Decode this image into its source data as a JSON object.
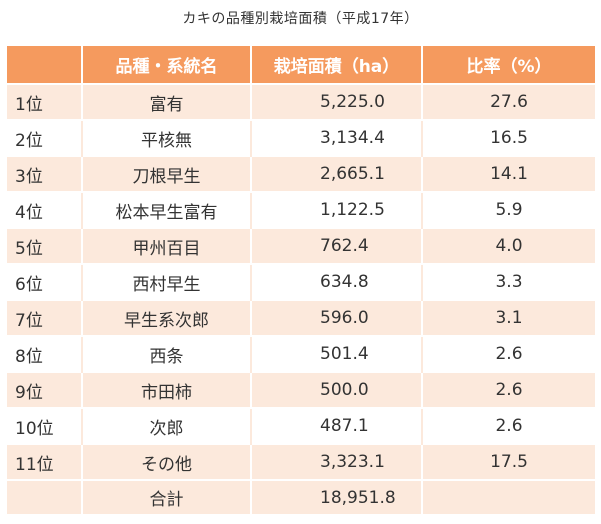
{
  "title": "カキの品種別栽培面積（平成17年）",
  "headers": {
    "rank": "",
    "name": "品種・系統名",
    "area": "栽培面積（ha）",
    "ratio": "比率（%）"
  },
  "rows": [
    {
      "rank": "1位",
      "name": "富有",
      "area": "5,225.0",
      "ratio": "27.6"
    },
    {
      "rank": "2位",
      "name": "平核無",
      "area": "3,134.4",
      "ratio": "16.5"
    },
    {
      "rank": "3位",
      "name": "刀根早生",
      "area": "2,665.1",
      "ratio": "14.1"
    },
    {
      "rank": "4位",
      "name": "松本早生富有",
      "area": "1,122.5",
      "ratio": "5.9"
    },
    {
      "rank": "5位",
      "name": "甲州百目",
      "area": "762.4",
      "ratio": "4.0"
    },
    {
      "rank": "6位",
      "name": "西村早生",
      "area": "634.8",
      "ratio": "3.3"
    },
    {
      "rank": "7位",
      "name": "早生系次郎",
      "area": "596.0",
      "ratio": "3.1"
    },
    {
      "rank": "8位",
      "name": "西条",
      "area": "501.4",
      "ratio": "2.6"
    },
    {
      "rank": "9位",
      "name": "市田柿",
      "area": "500.0",
      "ratio": "2.6"
    },
    {
      "rank": "10位",
      "name": "次郎",
      "area": "487.1",
      "ratio": "2.6"
    },
    {
      "rank": "11位",
      "name": "その他",
      "area": "3,323.1",
      "ratio": "17.5"
    }
  ],
  "total": {
    "rank": "",
    "name": "合計",
    "area": "18,951.8",
    "ratio": ""
  },
  "colors": {
    "header_bg": "#f59a5e",
    "stripe_bg": "#fce9dc"
  }
}
